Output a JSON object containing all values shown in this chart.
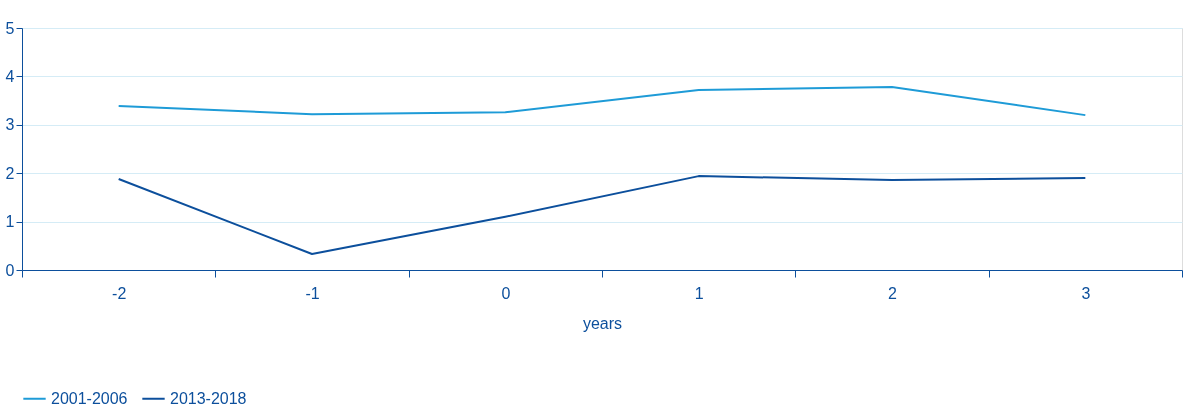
{
  "chart_data": {
    "type": "line",
    "xlabel": "years",
    "categories": [
      "-2",
      "-1",
      "0",
      "1",
      "2",
      "3"
    ],
    "series": [
      {
        "name": "2001-2006",
        "color": "#1e9bd7",
        "values": [
          3.39,
          3.22,
          3.26,
          3.72,
          3.78,
          3.2
        ]
      },
      {
        "name": "2013-2018",
        "color": "#0c4f9c",
        "values": [
          1.88,
          0.33,
          1.1,
          1.94,
          1.86,
          1.9
        ]
      }
    ],
    "ylim": [
      0,
      5
    ],
    "yticks": [
      0,
      1,
      2,
      3,
      4,
      5
    ],
    "grid": "y",
    "legend": "bottom",
    "marker": "none",
    "line_style": "solid"
  }
}
